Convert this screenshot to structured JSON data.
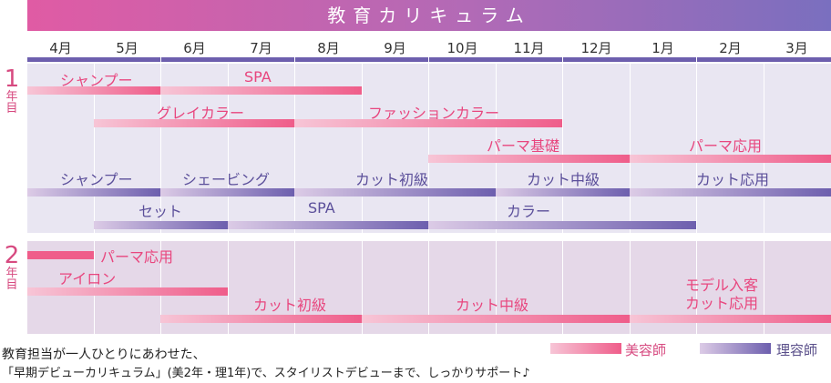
{
  "title": "教育カリキュラム",
  "months": [
    "4月",
    "5月",
    "6月",
    "7月",
    "8月",
    "9月",
    "10月",
    "11月",
    "12月",
    "1月",
    "2月",
    "3月"
  ],
  "year1": {
    "num": "1",
    "kanji1": "年",
    "kanji2": "目"
  },
  "year2": {
    "num": "2",
    "kanji1": "年",
    "kanji2": "目"
  },
  "y1_beauty": {
    "shampoo": "シャンプー",
    "spa": "SPA",
    "grey_color": "グレイカラー",
    "fashion_color": "ファッションカラー",
    "perm_basic": "パーマ基礎",
    "perm_applied": "パーマ応用"
  },
  "y1_barber": {
    "shampoo": "シャンプー",
    "shaving": "シェービング",
    "cut_beginner": "カット初級",
    "cut_intermediate": "カット中級",
    "cut_applied": "カット応用",
    "set": "セット",
    "spa": "SPA",
    "color": "カラー"
  },
  "y2_beauty": {
    "perm_applied": "パーマ応用",
    "iron": "アイロン",
    "cut_beginner": "カット初級",
    "cut_intermediate": "カット中級",
    "model_line1": "モデル入客",
    "model_line2": "カット応用"
  },
  "legend": {
    "beauty": "美容師",
    "barber": "理容師"
  },
  "footer": {
    "line1": "教育担当が一人ひとりにあわせた、",
    "line2": "「早期デビューカリキュラム」(美2年・理1年)で、スタイリストデビューまで、しっかりサポート♪"
  },
  "colors": {
    "beauty": "#ef5d8a",
    "barber": "#6d5fae",
    "title_start": "#e05ba4",
    "title_end": "#7a6fbf"
  }
}
